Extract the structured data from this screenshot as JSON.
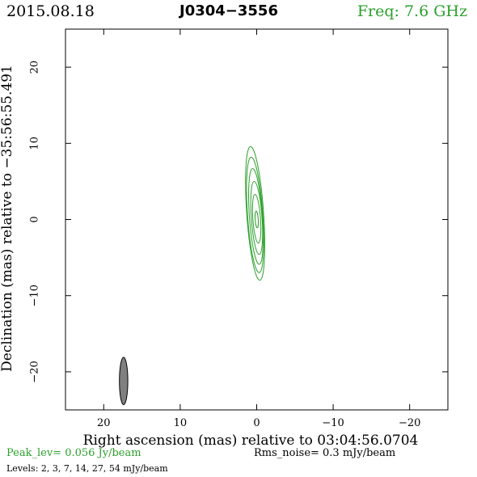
{
  "header": {
    "date": "2015.08.18",
    "source": "J0304−3556",
    "freq": "Freq:  7.6  GHz"
  },
  "footer": {
    "peak": "Peak_lev=  0.056  Jy/beam",
    "rms": "Rms_noise=   0.3  mJy/beam",
    "levels": "Levels:   2,   3,   7,   14,   27,   54  mJy/beam"
  },
  "colors": {
    "contour": "#2ca02c",
    "beam_fill": "#808080",
    "text_accent": "#2ca02c"
  },
  "chart_data": {
    "type": "contour",
    "xlabel": "Right ascension (mas) relative to 03:04:56.0704",
    "ylabel": "Declination (mas) relative to −35:56:55.491",
    "xlim": [
      25,
      -25
    ],
    "ylim": [
      -25,
      25
    ],
    "x_ticks": [
      20,
      10,
      0,
      -10,
      -20
    ],
    "y_ticks": [
      20,
      10,
      0,
      -10,
      -20
    ],
    "x_tick_labels": [
      "20",
      "10",
      "0",
      "−10",
      "−20"
    ],
    "y_tick_labels": [
      "20",
      "10",
      "0",
      "−10",
      "−20"
    ],
    "contour_levels_mJy": [
      2,
      3,
      7,
      14,
      27,
      54
    ],
    "contours": [
      {
        "level": 2,
        "cx": 0.2,
        "cy": 0.8,
        "a": 1.1,
        "b": 8.8,
        "angle": -4
      },
      {
        "level": 3,
        "cx": 0.2,
        "cy": 0.6,
        "a": 1.0,
        "b": 7.6,
        "angle": -4
      },
      {
        "level": 7,
        "cx": 0.1,
        "cy": 0.4,
        "a": 0.85,
        "b": 6.3,
        "angle": -4
      },
      {
        "level": 14,
        "cx": 0.0,
        "cy": 0.2,
        "a": 0.7,
        "b": 4.8,
        "angle": -4
      },
      {
        "level": 27,
        "cx": 0.0,
        "cy": 0.1,
        "a": 0.5,
        "b": 3.2,
        "angle": -4
      },
      {
        "level": 54,
        "cx": 0.0,
        "cy": 0.0,
        "a": 0.2,
        "b": 1.1,
        "angle": -4
      }
    ],
    "beam": {
      "x": 17.4,
      "y": -21.2,
      "major": 6.2,
      "minor": 1.1,
      "angle": 0
    }
  }
}
